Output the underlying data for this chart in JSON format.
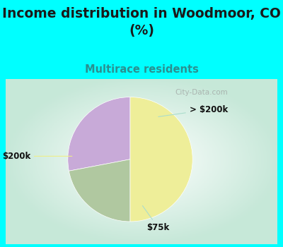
{
  "title": "Income distribution in Woodmoor, CO\n(%)",
  "subtitle": "Multirace residents",
  "title_color": "#1a1a1a",
  "subtitle_color": "#2a9090",
  "title_fontsize": 13.5,
  "subtitle_fontsize": 10.5,
  "bg_color_cyan": "#00ffff",
  "bg_color_chart_center": "#ffffff",
  "bg_color_chart_edge": "#c8e8d8",
  "slices": [
    {
      "label": "> $200k",
      "value": 28,
      "color": "#c8aad8"
    },
    {
      "label": "$75k",
      "value": 22,
      "color": "#b0c8a0"
    },
    {
      "label": "$200k",
      "value": 50,
      "color": "#eeee99"
    }
  ],
  "startangle": 90,
  "watermark": "City-Data.com",
  "label_fontsize": 8.5,
  "label_color": "#111111",
  "line_color": "#aaddcc"
}
